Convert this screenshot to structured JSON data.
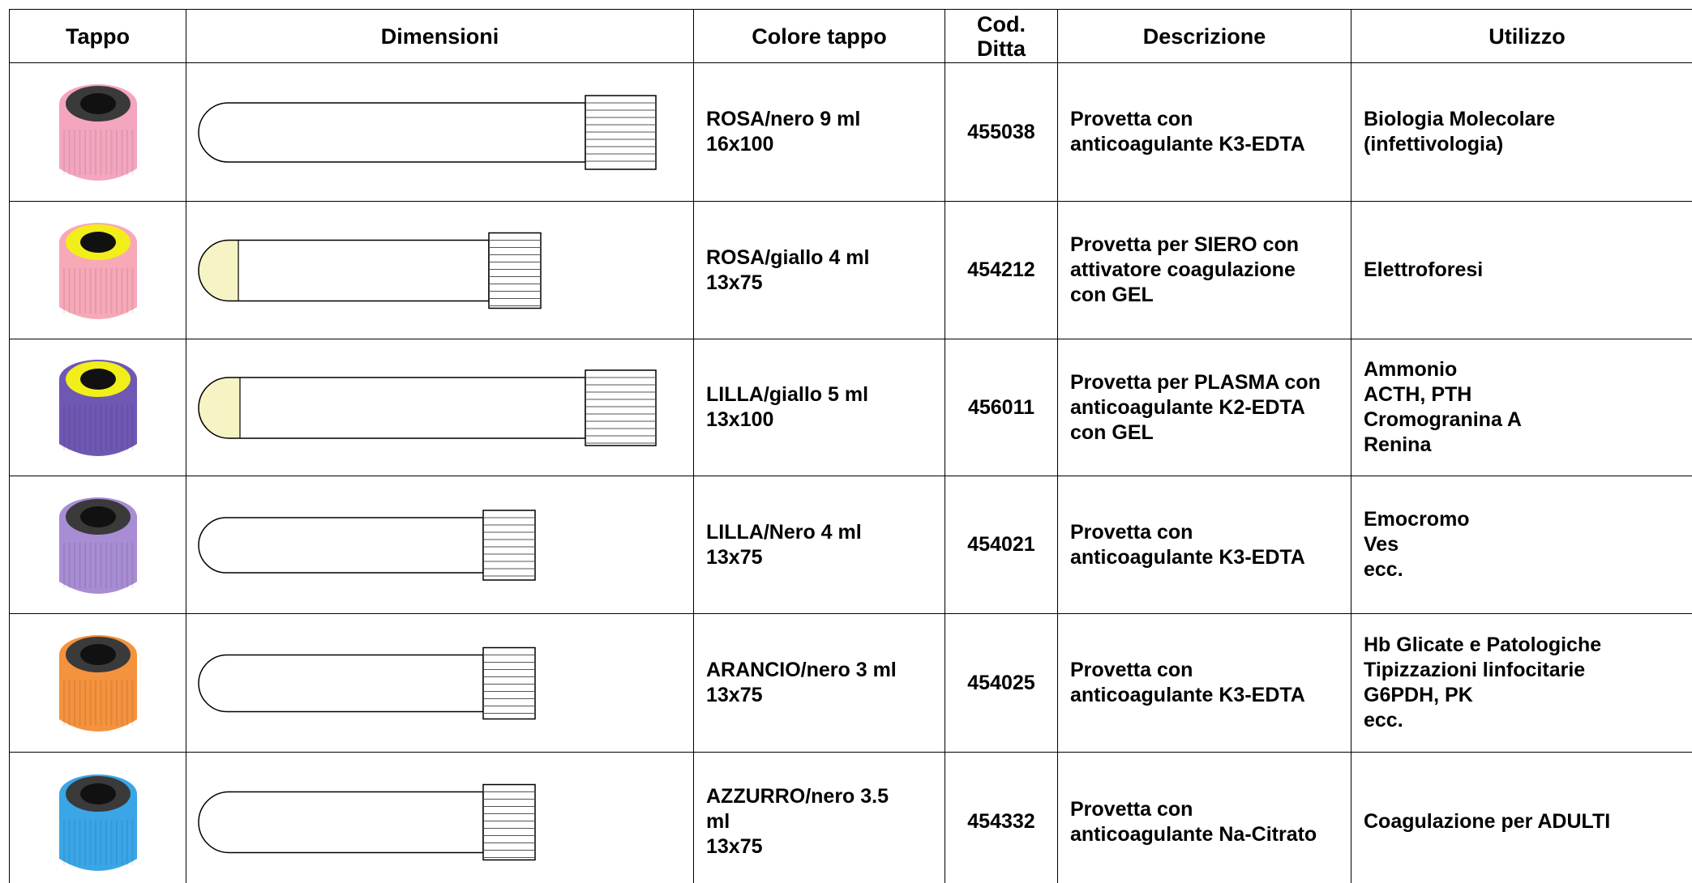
{
  "header": [
    [
      "Tappo"
    ],
    [
      "Dimensioni"
    ],
    [
      "Colore tappo"
    ],
    [
      "Cod.",
      "Ditta"
    ],
    [
      "Descrizione"
    ],
    [
      "Utilizzo"
    ]
  ],
  "rows": [
    {
      "colore": [
        "ROSA/nero 9 ml",
        "16x100"
      ],
      "codice": "455038",
      "descrizione": [
        "Provetta con",
        "anticoagulante K3-EDTA"
      ],
      "utilizzo": [
        "Biologia Molecolare",
        "(infettivologia)"
      ]
    },
    {
      "colore": [
        "ROSA/giallo 4 ml",
        "13x75"
      ],
      "codice": "454212",
      "descrizione": [
        "Provetta per SIERO con",
        "attivatore coagulazione",
        "con GEL"
      ],
      "utilizzo": [
        "Elettroforesi"
      ]
    },
    {
      "colore": [
        "LILLA/giallo 5 ml",
        "13x100"
      ],
      "codice": "456011",
      "descrizione": [
        "Provetta per PLASMA con",
        "anticoagulante K2-EDTA",
        "con GEL"
      ],
      "utilizzo": [
        "Ammonio",
        "ACTH, PTH",
        "Cromogranina A",
        "Renina"
      ]
    },
    {
      "colore": [
        "LILLA/Nero 4 ml",
        "13x75"
      ],
      "codice": "454021",
      "descrizione": [
        "Provetta con",
        "anticoagulante K3-EDTA"
      ],
      "utilizzo": [
        "Emocromo",
        "Ves",
        "ecc."
      ]
    },
    {
      "colore": [
        "ARANCIO/nero 3 ml",
        "13x75"
      ],
      "codice": "454025",
      "descrizione": [
        "Provetta con",
        "anticoagulante K3-EDTA"
      ],
      "utilizzo": [
        "Hb Glicate e Patologiche",
        "Tipizzazioni linfocitarie",
        "G6PDH, PK",
        "ecc."
      ]
    },
    {
      "colore": [
        "AZZURRO/nero 3.5",
        "ml",
        "13x75"
      ],
      "codice": "454332",
      "descrizione": [
        "Provetta con",
        "anticoagulante Na-Citrato"
      ],
      "utilizzo": [
        "Coagulazione per ADULTI"
      ]
    }
  ]
}
